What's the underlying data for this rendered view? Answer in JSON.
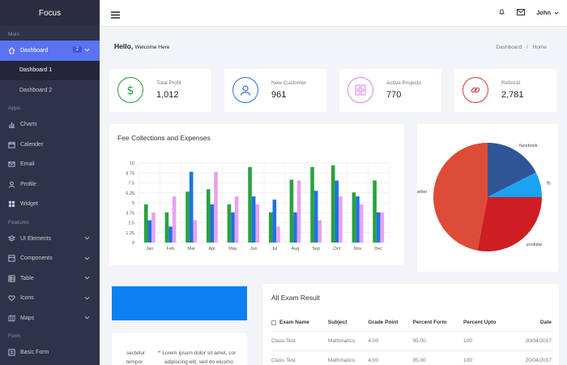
{
  "sidebar": {
    "brand": "Focus",
    "sections": {
      "main": "Main",
      "apps": "Apps",
      "features": "Features",
      "form": "Form"
    },
    "dashboard": {
      "label": "Dashboard",
      "badge": "2"
    },
    "subitems": [
      "Dashboard 1",
      "Dashboard 2"
    ],
    "apps": [
      "Charts",
      "Calender",
      "Email",
      "Profile",
      "Widget"
    ],
    "features": [
      "UI Elements",
      "Components",
      "Table",
      "Icons",
      "Maps"
    ],
    "forms": [
      "Basic Form"
    ]
  },
  "topbar": {
    "user": "John"
  },
  "header": {
    "hello": "Hello,",
    "welcome": "Welcome Here",
    "crumb_1": "Dashboard",
    "crumb_sep": "/",
    "crumb_2": "Home"
  },
  "stats": [
    {
      "label": "Total Profit",
      "value": "1,012",
      "color": "#1e9e3e",
      "icon": "dollar-icon"
    },
    {
      "label": "New Customer",
      "value": "961",
      "color": "#2f6fd6",
      "icon": "user-icon"
    },
    {
      "label": "Active Projects",
      "value": "770",
      "color": "#e080e8",
      "icon": "grid-icon"
    },
    {
      "label": "Referral",
      "value": "2,781",
      "color": "#d83a3a",
      "icon": "link-icon"
    }
  ],
  "chart_data": [
    {
      "type": "bar",
      "title": "Fee Collections and Expenses",
      "categories": [
        "Jan",
        "Feb",
        "Mar",
        "Apr",
        "May",
        "Jun",
        "Jul",
        "Aug",
        "Sep",
        "Oct",
        "Nov",
        "Dec"
      ],
      "ylim": [
        0,
        10
      ],
      "yticks": [
        "0",
        "1.25",
        "2.5",
        "3.75",
        "5",
        "6.25",
        "7.5",
        "8.75",
        "10"
      ],
      "grid": true,
      "series": [
        {
          "color": "#2aa140",
          "values": [
            4.8,
            3.8,
            6.4,
            6.7,
            4.8,
            9.5,
            3.8,
            7.9,
            9.5,
            9.7,
            6.3,
            7.8
          ]
        },
        {
          "color": "#1f73e0",
          "values": [
            2.8,
            2.0,
            8.9,
            4.8,
            3.8,
            5.8,
            5.4,
            3.8,
            6.5,
            7.8,
            5.8,
            3.8
          ]
        },
        {
          "color": "#e8a1ef",
          "values": [
            3.8,
            5.8,
            2.8,
            8.9,
            5.8,
            4.8,
            2.0,
            7.8,
            2.8,
            5.8,
            4.8,
            3.8
          ]
        }
      ]
    },
    {
      "type": "pie",
      "labels": [
        "facebook",
        "fb",
        "youtube",
        "twitter"
      ],
      "values": [
        17.5,
        7.5,
        28,
        47
      ],
      "colors": [
        "#2f5597",
        "#1aa3f0",
        "#cc1e23",
        "#dd4b39"
      ]
    }
  ],
  "quote": {
    "left_1": "sectetur",
    "left_2": "tempor",
    "text_1": "Lorem ipsum dolor sit amet, cor",
    "text_2": "adipiscing elit, sed do eiusmo"
  },
  "exam": {
    "title": "All Exam Result",
    "headers": [
      "Exam Name",
      "Subject",
      "Grade Point",
      "Percent Form",
      "Percent Upto",
      "Date"
    ],
    "rows": [
      [
        "Class Test",
        "Mathmatics",
        "4.00",
        "95.00",
        "100",
        "20/04/2017"
      ],
      [
        "Class Test",
        "Mathmatics",
        "4.00",
        "95.00",
        "100",
        "20/04/2017"
      ]
    ]
  }
}
